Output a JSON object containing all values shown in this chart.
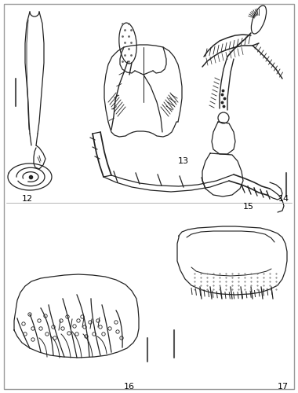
{
  "background_color": "#ffffff",
  "border_color": "#999999",
  "figure_labels": [
    "12",
    "13",
    "14",
    "15",
    "16",
    "17"
  ],
  "label_fontsize": 8,
  "scale_bar_color": "#555555",
  "line_color": "#222222",
  "figsize": [
    3.8,
    5.0
  ],
  "dpi": 100
}
